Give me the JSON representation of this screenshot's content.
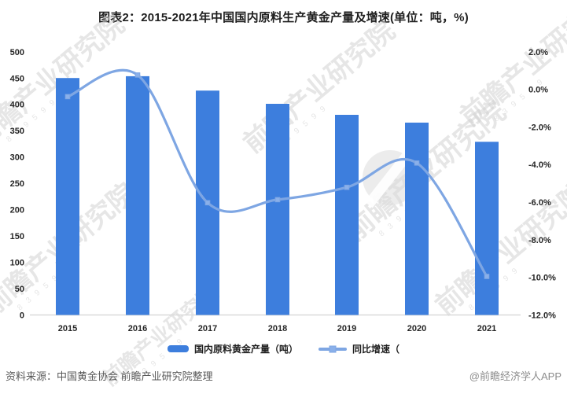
{
  "title": "图表2：2015-2021年中国国内原料生产黄金产量及增速(单位：吨，%)",
  "chart_data": {
    "type": "bar",
    "subtype": "combo-bar-line-dual-axis",
    "categories": [
      "2015",
      "2016",
      "2017",
      "2018",
      "2019",
      "2020",
      "2021"
    ],
    "series": [
      {
        "name": "国内原料黄金产量（吨）",
        "type": "bar",
        "axis": "left",
        "values": [
          450.05,
          453.48,
          426.14,
          401.12,
          380.23,
          365.34,
          328.98
        ]
      },
      {
        "name": "同比增速（",
        "type": "line",
        "axis": "right",
        "values": [
          -0.39,
          0.76,
          -6.03,
          -5.87,
          -5.21,
          -3.92,
          -9.95
        ]
      }
    ],
    "left_axis": {
      "min": 0,
      "max": 500,
      "step": 50,
      "labels": [
        "0",
        "50",
        "100",
        "150",
        "200",
        "250",
        "300",
        "350",
        "400",
        "450",
        "500"
      ]
    },
    "right_axis": {
      "min": -12,
      "max": 2,
      "step": 2,
      "labels": [
        "2.0%",
        "0.0%",
        "-2.0%",
        "-4.0%",
        "-6.0%",
        "-8.0%",
        "-10.0%",
        "-12.0%"
      ]
    },
    "grid": false,
    "legend_position": "bottom"
  },
  "watermark": {
    "text": "前瞻产业研究院",
    "digits": "8 3 9 5 9 9"
  },
  "footer": {
    "source": "资料来源：中国黄金协会 前瞻产业研究院整理",
    "credit": "@前瞻经济学人APP"
  },
  "colors": {
    "bar": "#3d7edd",
    "line": "#7ea6e3",
    "marker_fill": "#8ab0ea",
    "axis_line": "#d9d9d9",
    "tick_text": "#262626",
    "watermark": "#d2d2d2"
  }
}
